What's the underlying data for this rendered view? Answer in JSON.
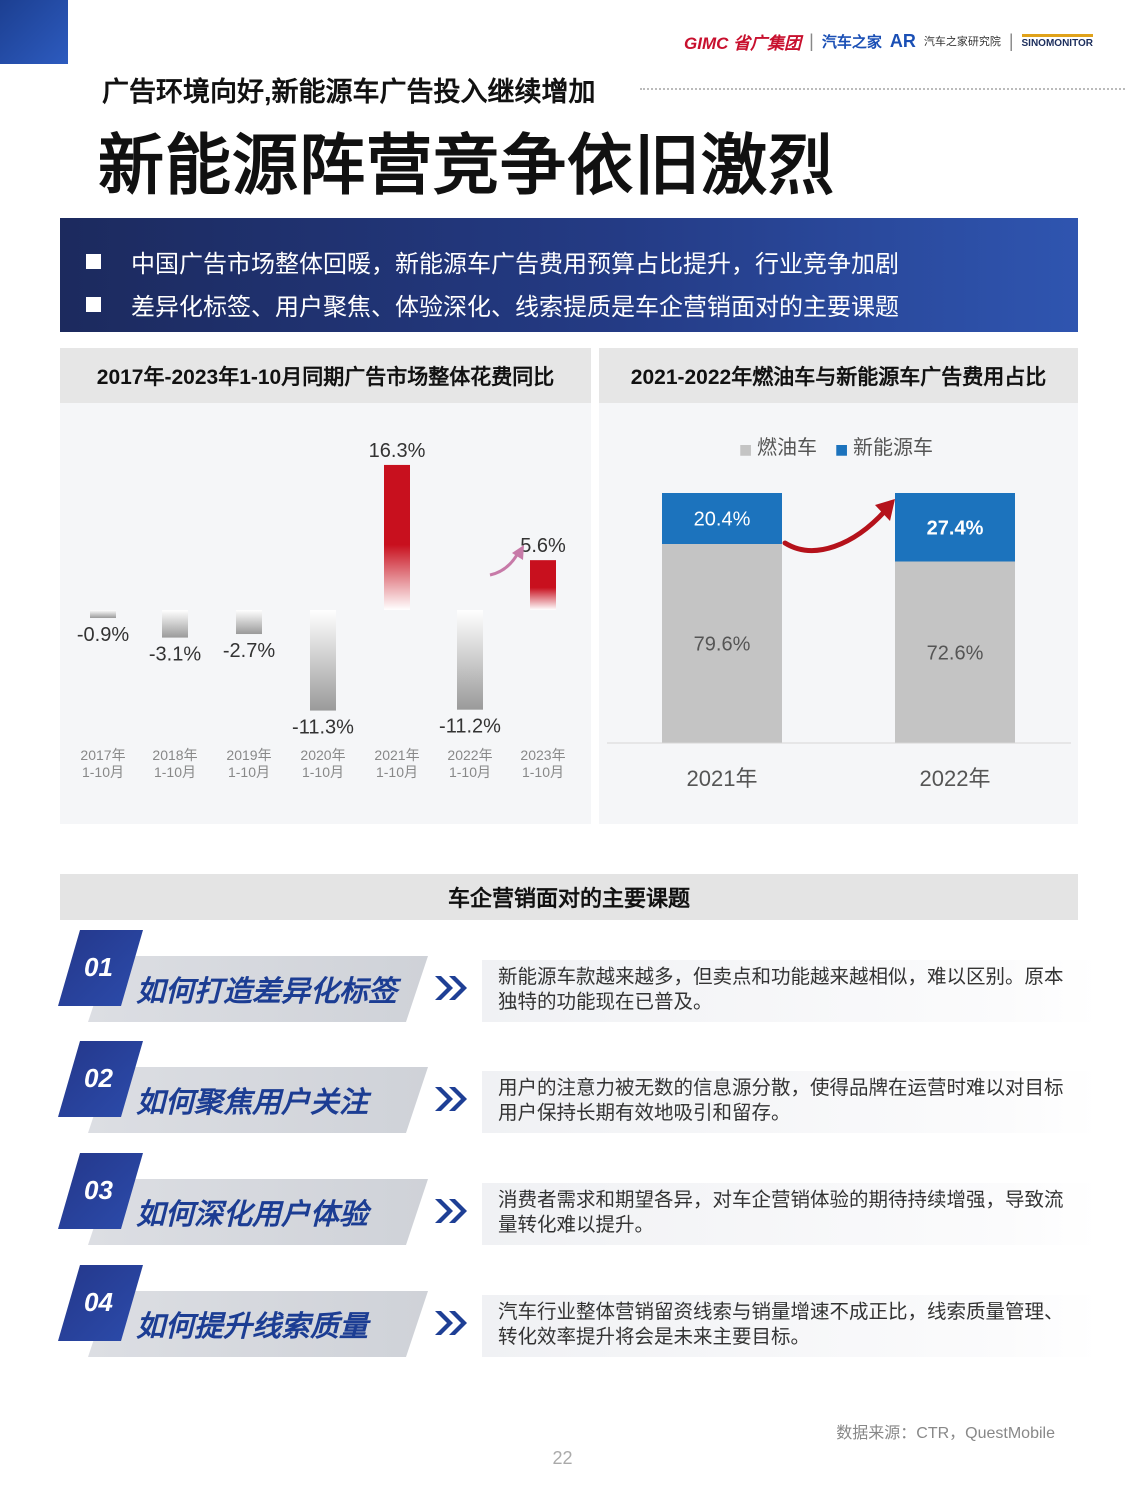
{
  "header": {
    "logos": {
      "gimc": "GIMC 省广集团",
      "autohome": "汽车之家",
      "ar": "AR",
      "institute": "汽车之家研究院",
      "sinomonitor": "SINOMONITOR"
    },
    "subtitle": "广告环境向好,新能源车广告投入继续增加",
    "title": "新能源阵营竞争依旧激烈"
  },
  "banner": {
    "items": [
      "中国广告市场整体回暖，新能源车广告费用预算占比提升，行业竞争加剧",
      "差异化标签、用户聚焦、体验深化、线索提质是车企营销面对的主要课题"
    ]
  },
  "left_panel": {
    "title": "2017年-2023年1-10月同期广告市场整体花费同比"
  },
  "right_panel": {
    "title": "2021-2022年燃油车与新能源车广告费用占比"
  },
  "chart_data": [
    {
      "type": "bar",
      "title": "2017年-2023年1-10月同期广告市场整体花费同比",
      "categories": [
        [
          "2017年",
          "1-10月"
        ],
        [
          "2018年",
          "1-10月"
        ],
        [
          "2019年",
          "1-10月"
        ],
        [
          "2020年",
          "1-10月"
        ],
        [
          "2021年",
          "1-10月"
        ],
        [
          "2022年",
          "1-10月"
        ],
        [
          "2023年",
          "1-10月"
        ]
      ],
      "values": [
        -0.9,
        -3.1,
        -2.7,
        -11.3,
        16.3,
        -11.2,
        5.6
      ],
      "labels": [
        "-0.9%",
        "-3.1%",
        "-2.7%",
        "-11.3%",
        "16.3%",
        "-11.2%",
        "5.6%"
      ],
      "ylim": [
        -11.3,
        16.3
      ],
      "colors": {
        "positive": "#c8101e",
        "negative": "#9a9a9a"
      }
    },
    {
      "type": "bar",
      "stacked": true,
      "title": "2021-2022年燃油车与新能源车广告费用占比",
      "categories": [
        "2021年",
        "2022年"
      ],
      "series": [
        {
          "name": "燃油车",
          "values": [
            79.6,
            72.6
          ],
          "labels": [
            "79.6%",
            "72.6%"
          ],
          "color": "#c4c4c4"
        },
        {
          "name": "新能源车",
          "values": [
            20.4,
            27.4
          ],
          "labels": [
            "20.4%",
            "27.4%"
          ],
          "color": "#1c73bd"
        }
      ],
      "ylim": [
        0,
        100
      ],
      "legend": "top-center",
      "legend_marker": "■"
    }
  ],
  "issues_header": "车企营销面对的主要课题",
  "issues": [
    {
      "num": "01",
      "title": "如何打造差异化标签",
      "desc": "新能源车款越来越多，但卖点和功能越来越相似，难以区别。原本独特的功能现在已普及。"
    },
    {
      "num": "02",
      "title": "如何聚焦用户关注",
      "desc": "用户的注意力被无数的信息源分散，使得品牌在运营时难以对目标用户保持长期有效地吸引和留存。"
    },
    {
      "num": "03",
      "title": "如何深化用户体验",
      "desc": "消费者需求和期望各异，对车企营销体验的期待持续增强，导致流量转化难以提升。"
    },
    {
      "num": "04",
      "title": "如何提升线索质量",
      "desc": "汽车行业整体营销留资线索与销量增速不成正比，线索质量管理、转化效率提升将会是未来主要目标。"
    }
  ],
  "footer": {
    "source": "数据来源：CTR，QuestMobile",
    "page": "22"
  },
  "icons": {
    "banner_bullet": "square-bullet-icon",
    "issue_arrow": "double-chevron-right-icon",
    "trend": "curved-arrow-icon"
  }
}
